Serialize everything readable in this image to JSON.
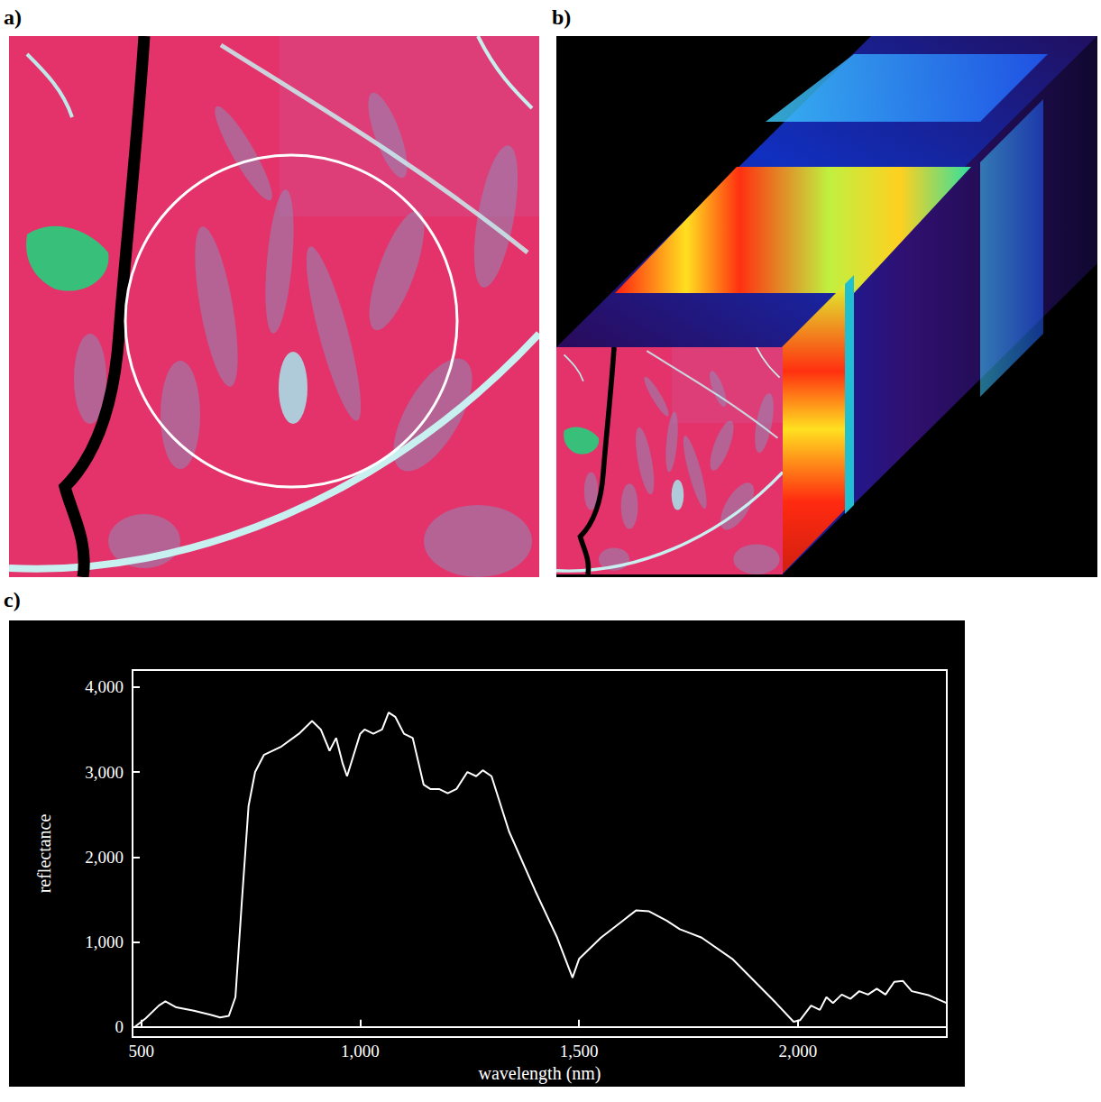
{
  "panel_labels": [
    "a)",
    "b)",
    "c)"
  ],
  "chart_data": {
    "type": "line",
    "x_label": "wavelength (nm)",
    "y_label": "reflectance",
    "x": [
      485,
      510,
      540,
      555,
      580,
      620,
      660,
      680,
      700,
      715,
      730,
      745,
      760,
      780,
      820,
      860,
      890,
      910,
      930,
      945,
      960,
      970,
      985,
      1000,
      1010,
      1030,
      1050,
      1065,
      1080,
      1100,
      1120,
      1145,
      1160,
      1180,
      1200,
      1220,
      1245,
      1265,
      1280,
      1300,
      1340,
      1400,
      1450,
      1485,
      1500,
      1550,
      1600,
      1630,
      1660,
      1700,
      1730,
      1780,
      1850,
      1950,
      1990,
      2005,
      2030,
      2050,
      2065,
      2080,
      2100,
      2120,
      2140,
      2160,
      2180,
      2200,
      2220,
      2240,
      2260,
      2300,
      2340
    ],
    "values": [
      0,
      100,
      250,
      300,
      230,
      190,
      140,
      110,
      130,
      350,
      1500,
      2600,
      3000,
      3200,
      3300,
      3450,
      3600,
      3500,
      3250,
      3400,
      3100,
      2950,
      3200,
      3450,
      3500,
      3450,
      3500,
      3700,
      3650,
      3450,
      3400,
      2850,
      2800,
      2800,
      2750,
      2800,
      3000,
      2950,
      3020,
      2950,
      2300,
      1600,
      1050,
      580,
      800,
      1050,
      1250,
      1370,
      1360,
      1250,
      1150,
      1050,
      800,
      280,
      60,
      80,
      250,
      200,
      350,
      280,
      380,
      330,
      420,
      380,
      450,
      380,
      530,
      540,
      420,
      370,
      280
    ],
    "color": "#ffffff",
    "xlim": [
      480,
      2340
    ],
    "xticks": [
      500,
      1000,
      1500,
      2000
    ],
    "ylim": [
      -120,
      4200
    ],
    "yticks": [
      0,
      1000,
      2000,
      3000,
      4000
    ],
    "grid": false,
    "marker": "none",
    "line_style": "solid"
  }
}
